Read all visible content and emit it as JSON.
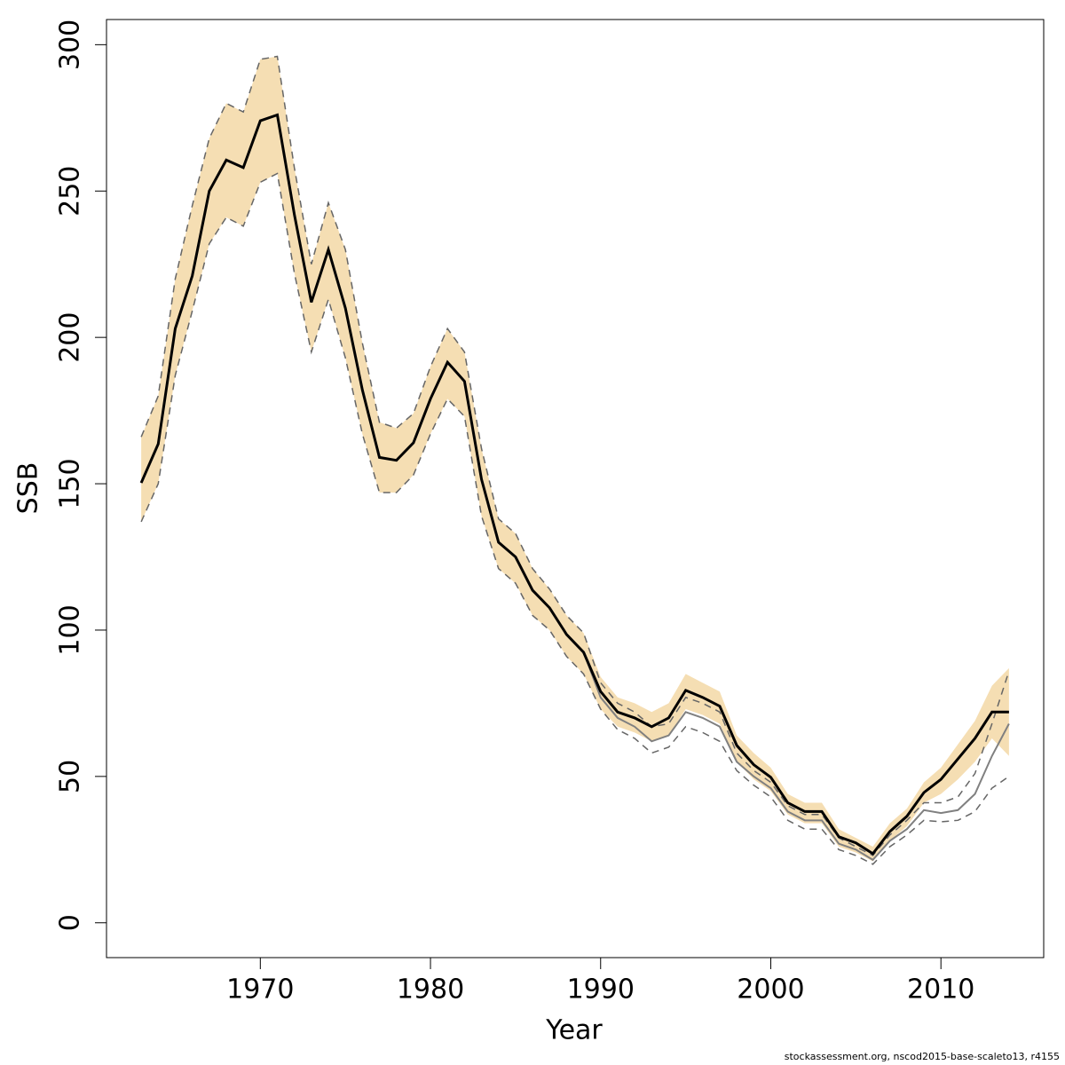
{
  "chart_data": {
    "type": "line",
    "x_label": "Year",
    "y_label": "SSB",
    "footer": "stockassessment.org, nscod2015-base-scaleto13, r4155",
    "x": [
      1963,
      1964,
      1965,
      1966,
      1967,
      1968,
      1969,
      1970,
      1971,
      1972,
      1973,
      1974,
      1975,
      1976,
      1977,
      1978,
      1979,
      1980,
      1981,
      1982,
      1983,
      1984,
      1985,
      1986,
      1987,
      1988,
      1989,
      1990,
      1991,
      1992,
      1993,
      1994,
      1995,
      1996,
      1997,
      1998,
      1999,
      2000,
      2001,
      2002,
      2003,
      2004,
      2005,
      2006,
      2007,
      2008,
      2009,
      2010,
      2011,
      2012,
      2013,
      2014
    ],
    "xlim": [
      1960.96,
      2016.04
    ],
    "xticks": [
      1970,
      1980,
      1990,
      2000,
      2010
    ],
    "ylim": [
      -11.9,
      308.6
    ],
    "yticks": [
      0,
      50,
      100,
      150,
      200,
      250,
      300
    ],
    "band_color": "#f5deb3",
    "series": [
      {
        "color": "#000000",
        "style": "solid",
        "values": [
          150.3,
          163.6,
          203,
          221,
          250,
          260.6,
          258,
          274,
          276,
          242,
          212,
          230,
          210,
          182,
          159,
          158,
          164,
          179,
          191.5,
          185,
          151.5,
          130,
          125,
          113.6,
          107.6,
          98.5,
          92.4,
          79,
          72,
          70,
          67,
          70,
          79.4,
          77,
          74,
          60.6,
          54,
          49.7,
          41,
          38,
          38,
          29.4,
          27.3,
          23.6,
          31.2,
          36.4,
          44.5,
          49,
          56,
          63,
          72,
          72
        ],
        "lower": [
          137,
          150,
          187,
          209,
          232,
          241,
          238,
          253,
          256,
          222,
          195,
          213,
          193,
          167,
          147,
          147,
          153,
          167,
          179,
          173,
          139,
          121,
          116,
          105,
          100,
          91,
          85,
          73,
          67,
          65,
          62,
          64,
          73,
          71,
          68,
          55,
          49,
          45,
          37,
          34,
          34,
          26,
          24,
          21,
          28,
          33,
          41,
          44,
          49,
          55,
          63,
          57
        ],
        "upper": [
          166,
          180,
          220,
          245,
          268,
          280,
          277,
          295,
          296,
          258,
          225,
          246,
          230,
          198,
          171,
          169,
          174,
          190,
          203,
          195,
          162,
          138,
          133,
          121,
          114,
          105,
          99,
          84,
          77,
          75,
          72,
          75,
          85,
          82,
          79,
          64,
          58,
          53,
          44,
          41,
          41,
          32,
          29,
          26,
          34,
          39,
          48,
          53,
          61,
          69,
          81,
          87
        ]
      },
      {
        "color": "#808080",
        "style": "dashed",
        "values": [
          150.3,
          163.6,
          203,
          221,
          250,
          260.6,
          258,
          274,
          276,
          242,
          212,
          230,
          210,
          182,
          159,
          158,
          164,
          179,
          191.5,
          185,
          151.5,
          130,
          125,
          113.6,
          107.6,
          98.5,
          92.4,
          77,
          70,
          67,
          62,
          64,
          72,
          70,
          67,
          55,
          50,
          46,
          38,
          35,
          35,
          27,
          25,
          21.5,
          28,
          32,
          38.5,
          37.5,
          38.5,
          44,
          57,
          68
        ],
        "lower": [
          137,
          150,
          187,
          209,
          232,
          241,
          238,
          253,
          256,
          222,
          195,
          213,
          193,
          167,
          147,
          147,
          153,
          167,
          179,
          173,
          139,
          121,
          116,
          105,
          100,
          91,
          85,
          73,
          66,
          63,
          58,
          60,
          67,
          65,
          62,
          52,
          47,
          43,
          35,
          32,
          32,
          25,
          23,
          20,
          26,
          30,
          35,
          34.5,
          35,
          38,
          46,
          50
        ],
        "upper": [
          166,
          180,
          220,
          245,
          268,
          280,
          277,
          295,
          296,
          258,
          225,
          246,
          230,
          198,
          171,
          169,
          174,
          190,
          203,
          195,
          162,
          138,
          133,
          121,
          114,
          105,
          99,
          82,
          75,
          72,
          67,
          68,
          77,
          75,
          72,
          58,
          52,
          48,
          40,
          37,
          37,
          29,
          26,
          23,
          30,
          35,
          41,
          41,
          43,
          51,
          68,
          86
        ]
      }
    ]
  }
}
